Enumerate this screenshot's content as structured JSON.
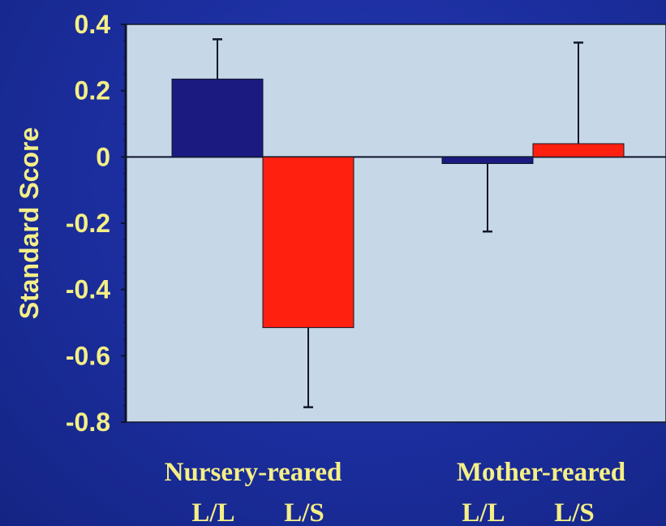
{
  "chart_data": {
    "type": "bar",
    "ylabel": "Standard Score",
    "ylim": [
      -0.8,
      0.4
    ],
    "yticks": [
      0.4,
      0.2,
      0,
      -0.2,
      -0.4,
      -0.6,
      -0.8
    ],
    "ytick_labels": [
      "0.4",
      "0.2",
      "0",
      "-0.2",
      "-0.4",
      "-0.6",
      "-0.8"
    ],
    "grid": false,
    "groups": [
      {
        "label": "Nursery-reared",
        "bars": [
          {
            "category": "L/L",
            "value": 0.235,
            "error_end": 0.355,
            "color": "#1a1a80"
          },
          {
            "category": "L/S",
            "value": -0.515,
            "error_end": -0.755,
            "color": "#ff2010"
          }
        ]
      },
      {
        "label": "Mother-reared",
        "bars": [
          {
            "category": "L/L",
            "value": -0.02,
            "error_end": -0.225,
            "color": "#1a1a80"
          },
          {
            "category": "L/S",
            "value": 0.04,
            "error_end": 0.345,
            "color": "#ff2010"
          }
        ]
      }
    ],
    "colors": {
      "background": "#1c2f9e",
      "plot_area": "#c6d7e7",
      "text": "#f4ef86",
      "ll_bar": "#1a1a80",
      "ls_bar": "#ff2010"
    }
  }
}
